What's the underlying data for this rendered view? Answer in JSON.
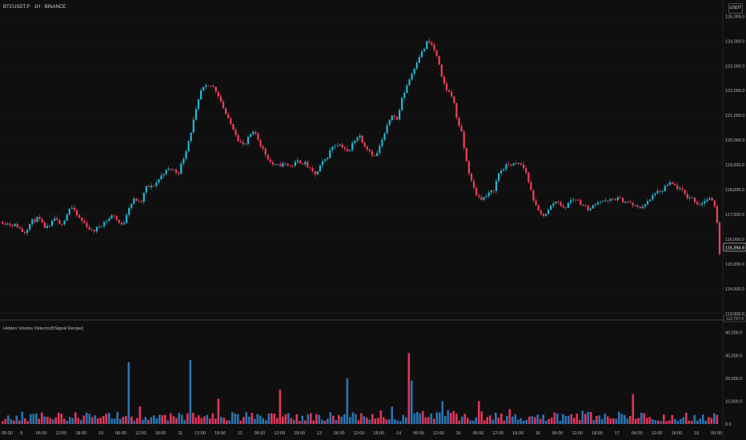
{
  "symbol_title": "BTCUSDT.P · 1H · BINANCE",
  "currency": "USDT",
  "indicator_title": "Hidden Volume Detector[5Signal Recipe]",
  "colors": {
    "background": "#0f0f0f",
    "up": "#26b6d4",
    "down": "#f23f5d",
    "vol_up": "#2a74b4",
    "vol_down": "#e0365a",
    "axis_text": "#b2b5be",
    "grid": "#1c1c1c"
  },
  "chart_data": [
    {
      "type": "candlestick",
      "title": "BTCUSDT.P · 1H · BINANCE",
      "y_ticks": [
        "125,000.0",
        "124,000.0",
        "123,000.0",
        "122,000.0",
        "121,000.0",
        "120,000.0",
        "119,000.0",
        "118,000.0",
        "117,000.0",
        "116,000.0",
        "115,000.0",
        "114,000.0",
        "113,000.0"
      ],
      "ylim": [
        112800,
        125400
      ],
      "last_price": "115,394.8",
      "last_price_value": 115394.8,
      "bottom_label": "112,787.4",
      "x_ticks": [
        "00:00",
        "9",
        "06:00",
        "12:00",
        "18:00",
        "10",
        "06:00",
        "12:00",
        "18:00",
        "11",
        "12:00",
        "18:00",
        "12",
        "06:00",
        "12:00",
        "18:00",
        "13",
        "06:00",
        "12:00",
        "18:00",
        "14",
        "06:00",
        "12:00",
        "15",
        "06:00",
        "12:00",
        "18:00",
        "16",
        "06:00",
        "12:00",
        "18:00",
        "17",
        "06:00",
        "12:00",
        "18:00",
        "18",
        "06:00"
      ],
      "close_path": [
        [
          0,
          116700
        ],
        [
          8,
          116600
        ],
        [
          16,
          116550
        ],
        [
          24,
          116250
        ],
        [
          32,
          116700
        ],
        [
          40,
          116850
        ],
        [
          46,
          116500
        ],
        [
          52,
          116450
        ],
        [
          58,
          116850
        ],
        [
          64,
          116550
        ],
        [
          70,
          116850
        ],
        [
          76,
          117350
        ],
        [
          82,
          117000
        ],
        [
          88,
          116750
        ],
        [
          94,
          116550
        ],
        [
          100,
          116300
        ],
        [
          106,
          116450
        ],
        [
          112,
          116650
        ],
        [
          118,
          116800
        ],
        [
          124,
          117000
        ],
        [
          128,
          116750
        ],
        [
          134,
          116500
        ],
        [
          140,
          117250
        ],
        [
          148,
          117650
        ],
        [
          154,
          117400
        ],
        [
          160,
          118100
        ],
        [
          166,
          118100
        ],
        [
          172,
          118300
        ],
        [
          180,
          118700
        ],
        [
          188,
          118850
        ],
        [
          196,
          118650
        ],
        [
          204,
          119500
        ],
        [
          210,
          120300
        ],
        [
          216,
          121200
        ],
        [
          222,
          122050
        ],
        [
          228,
          122150
        ],
        [
          234,
          122200
        ],
        [
          240,
          121900
        ],
        [
          246,
          121350
        ],
        [
          252,
          120800
        ],
        [
          258,
          120450
        ],
        [
          264,
          119950
        ],
        [
          270,
          119750
        ],
        [
          276,
          120200
        ],
        [
          282,
          120300
        ],
        [
          288,
          119800
        ],
        [
          294,
          119400
        ],
        [
          300,
          119050
        ],
        [
          306,
          118950
        ],
        [
          314,
          119050
        ],
        [
          322,
          118950
        ],
        [
          330,
          119150
        ],
        [
          338,
          119050
        ],
        [
          344,
          118750
        ],
        [
          350,
          118600
        ],
        [
          356,
          119050
        ],
        [
          362,
          119300
        ],
        [
          368,
          119750
        ],
        [
          374,
          119850
        ],
        [
          380,
          119750
        ],
        [
          386,
          119450
        ],
        [
          392,
          120000
        ],
        [
          398,
          120200
        ],
        [
          404,
          119800
        ],
        [
          410,
          119550
        ],
        [
          416,
          119300
        ],
        [
          422,
          119850
        ],
        [
          428,
          120400
        ],
        [
          434,
          121100
        ],
        [
          440,
          120800
        ],
        [
          446,
          121700
        ],
        [
          452,
          122300
        ],
        [
          458,
          122800
        ],
        [
          464,
          123350
        ],
        [
          470,
          123650
        ],
        [
          474,
          124000
        ],
        [
          480,
          123800
        ],
        [
          486,
          123200
        ],
        [
          490,
          122500
        ],
        [
          496,
          122000
        ],
        [
          502,
          121800
        ],
        [
          506,
          121000
        ],
        [
          512,
          120300
        ],
        [
          518,
          119050
        ],
        [
          524,
          118200
        ],
        [
          530,
          117700
        ],
        [
          536,
          117650
        ],
        [
          542,
          117800
        ],
        [
          548,
          118000
        ],
        [
          554,
          118700
        ],
        [
          560,
          118900
        ],
        [
          566,
          119050
        ],
        [
          572,
          119000
        ],
        [
          578,
          119050
        ],
        [
          584,
          118700
        ],
        [
          590,
          117900
        ],
        [
          596,
          117200
        ],
        [
          602,
          116950
        ],
        [
          608,
          117100
        ],
        [
          614,
          117450
        ],
        [
          620,
          117550
        ],
        [
          626,
          117200
        ],
        [
          632,
          117500
        ],
        [
          638,
          117650
        ],
        [
          644,
          117500
        ],
        [
          650,
          117300
        ],
        [
          656,
          117200
        ],
        [
          662,
          117500
        ],
        [
          668,
          117550
        ],
        [
          674,
          117500
        ],
        [
          680,
          117600
        ],
        [
          686,
          117650
        ],
        [
          692,
          117550
        ],
        [
          698,
          117500
        ],
        [
          704,
          117350
        ],
        [
          710,
          117250
        ],
        [
          716,
          117400
        ],
        [
          722,
          117550
        ],
        [
          728,
          117900
        ],
        [
          734,
          117850
        ],
        [
          740,
          118150
        ],
        [
          746,
          118250
        ],
        [
          752,
          118100
        ],
        [
          758,
          117950
        ],
        [
          764,
          117700
        ],
        [
          770,
          117650
        ],
        [
          776,
          117400
        ],
        [
          782,
          117500
        ],
        [
          788,
          117650
        ],
        [
          796,
          117300
        ],
        [
          800,
          115400
        ]
      ],
      "volume_title": "Hidden Volume Detector[5Signal Recipe]",
      "volume_y_ticks": [
        "40,000.0",
        "30,000.0",
        "20,000.0",
        "10,000.0",
        "0.0"
      ],
      "volume_ylim": [
        0,
        42000
      ],
      "volume_spikes": [
        {
          "bar": 45,
          "value": 27000,
          "dir": "up"
        },
        {
          "bar": 67,
          "value": 28000,
          "dir": "up"
        },
        {
          "bar": 77,
          "value": 11000,
          "dir": "down"
        },
        {
          "bar": 99,
          "value": 15000,
          "dir": "down"
        },
        {
          "bar": 123,
          "value": 20000,
          "dir": "up"
        },
        {
          "bar": 145,
          "value": 31000,
          "dir": "down"
        },
        {
          "bar": 146,
          "value": 19000,
          "dir": "up"
        },
        {
          "bar": 170,
          "value": 10000,
          "dir": "down"
        },
        {
          "bar": 225,
          "value": 13000,
          "dir": "down"
        }
      ]
    }
  ]
}
